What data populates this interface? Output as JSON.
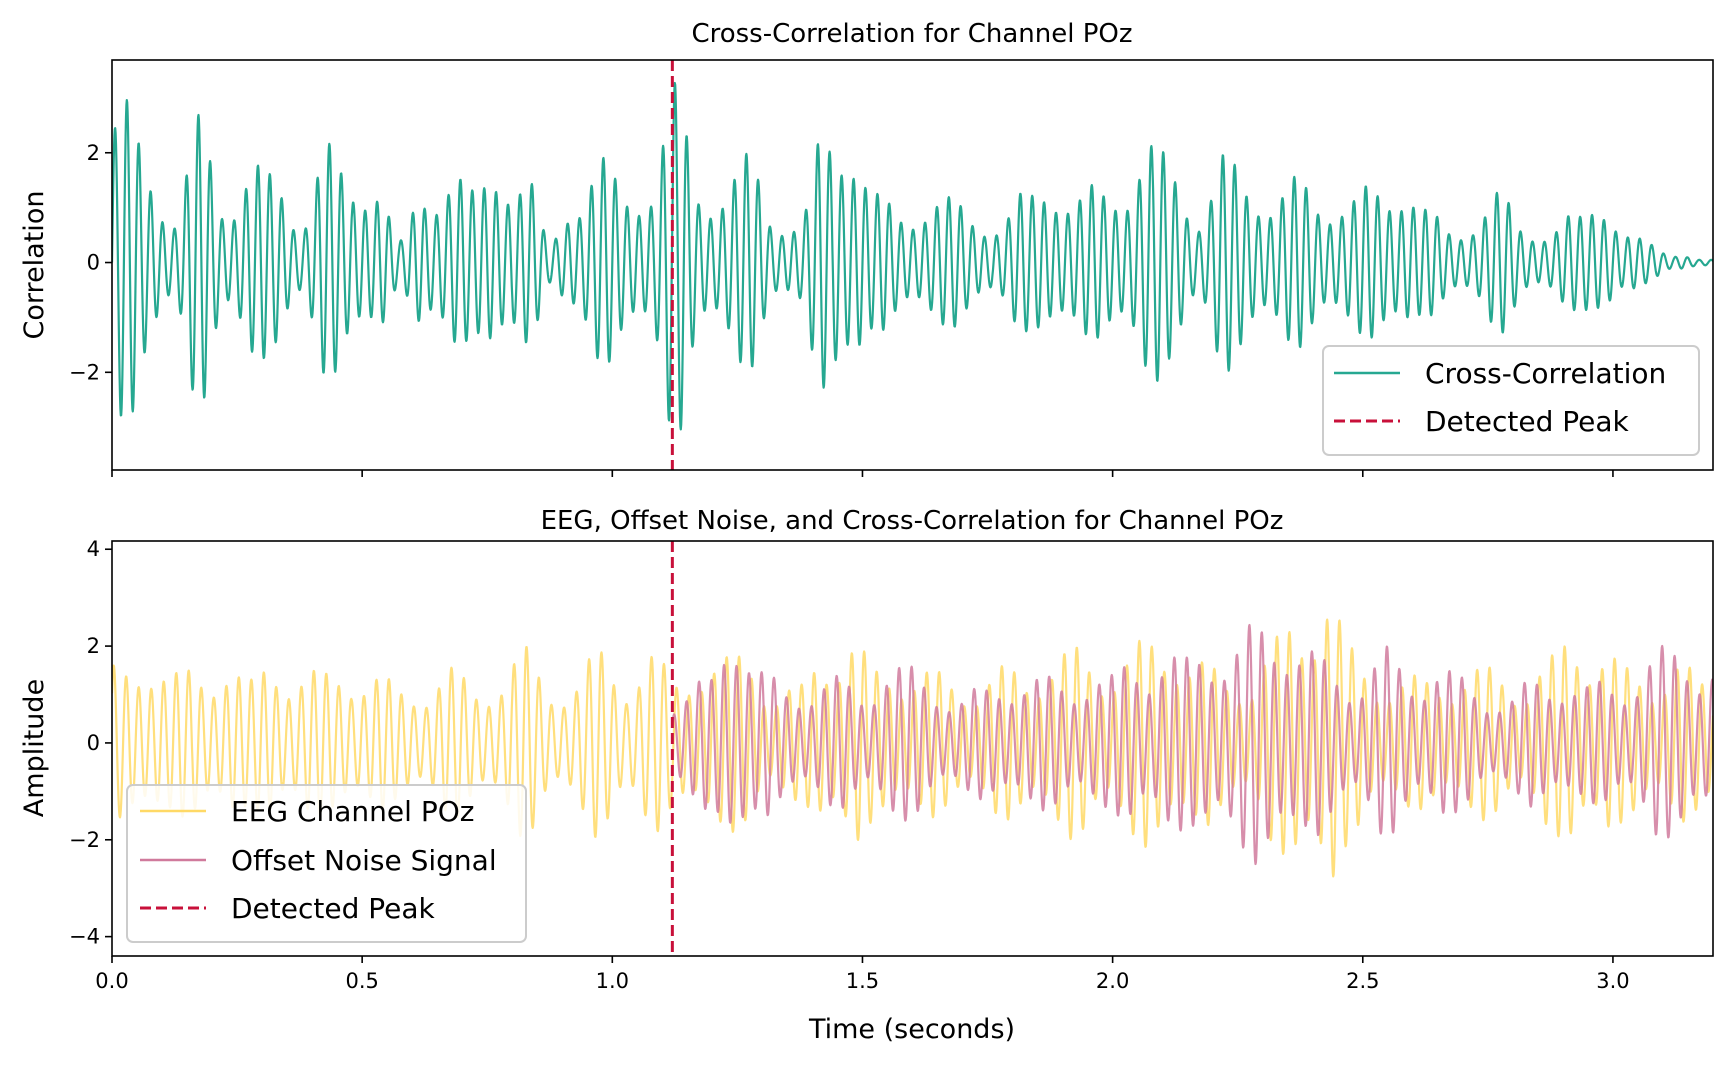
{
  "chart_data": [
    {
      "type": "line",
      "title": "Cross-Correlation for Channel POz",
      "xlabel": "",
      "ylabel": "Correlation",
      "xlim": [
        0,
        3.2
      ],
      "ylim": [
        -3.78,
        3.69
      ],
      "xticks": [
        0.0,
        0.5,
        1.0,
        1.5,
        2.0,
        2.5,
        3.0
      ],
      "xtick_labels_shown": false,
      "yticks": [
        -2,
        0,
        2
      ],
      "ytick_labels": [
        "−2",
        "0",
        "2"
      ],
      "grid": false,
      "legend": "bottom-right",
      "oscillation_hz": 42,
      "envelope_bin_seconds": 0.05,
      "series": [
        {
          "name": "Cross-Correlation",
          "color": "#26a891",
          "style": "solid",
          "x_start": 0.0,
          "peak_amplitude": [
            3.0,
            2.0,
            1.0,
            2.7,
            1.3,
            2.0,
            1.6,
            1.0,
            2.3,
            1.5,
            2.0,
            0.4,
            1.5,
            2.0,
            1.3,
            2.2,
            1.8,
            0.4,
            1.5,
            2.0,
            1.4,
            1.8,
            3.3,
            1.6,
            1.6,
            2.0,
            1.0,
            0.8,
            2.5,
            3.0,
            1.3,
            1.0,
            1.3,
            1.2,
            1.0,
            0.8,
            1.3,
            1.9,
            1.2,
            1.5,
            1.8,
            2.2,
            2.0,
            1.0,
            2.0,
            1.8,
            1.3,
            1.6,
            1.4,
            1.2,
            1.5,
            1.8,
            1.0,
            0.7,
            0.9,
            1.3,
            0.8,
            0.6,
            0.9,
            1.6,
            0.5,
            0.4,
            0.2,
            0.05
          ]
        },
        {
          "name": "Detected Peak",
          "color": "#c8103a",
          "style": "dashed",
          "x": 1.12
        }
      ]
    },
    {
      "type": "line",
      "title": "EEG, Offset Noise, and Cross-Correlation for Channel POz",
      "xlabel": "Time (seconds)",
      "ylabel": "Amplitude",
      "xlim": [
        0,
        3.2
      ],
      "ylim": [
        -4.4,
        4.17
      ],
      "xticks": [
        0.0,
        0.5,
        1.0,
        1.5,
        2.0,
        2.5,
        3.0
      ],
      "xtick_labels": [
        "0.0",
        "0.5",
        "1.0",
        "1.5",
        "2.0",
        "2.5",
        "3.0"
      ],
      "yticks": [
        -4,
        -2,
        0,
        2,
        4
      ],
      "ytick_labels": [
        "−4",
        "−2",
        "0",
        "2",
        "4"
      ],
      "grid": false,
      "legend": "bottom-left",
      "oscillation_hz": 40,
      "envelope_bin_seconds": 0.05,
      "series": [
        {
          "name": "EEG Channel POz",
          "color": "#ffd966",
          "style": "solid",
          "x_start": 0.0,
          "peak_amplitude": [
            1.6,
            2.2,
            1.5,
            1.6,
            2.0,
            1.3,
            2.0,
            1.6,
            1.5,
            1.8,
            1.5,
            1.2,
            1.4,
            1.6,
            1.3,
            1.6,
            2.0,
            1.4,
            1.4,
            2.0,
            1.6,
            2.0,
            1.4,
            2.0,
            1.8,
            2.0,
            1.2,
            1.2,
            2.2,
            2.4,
            1.6,
            1.8,
            1.6,
            1.4,
            1.4,
            1.6,
            1.6,
            2.0,
            2.0,
            1.8,
            2.0,
            2.2,
            2.4,
            1.8,
            1.4,
            1.6,
            2.2,
            2.8,
            3.8,
            2.0,
            1.6,
            1.4,
            1.4,
            1.6,
            1.6,
            1.6,
            1.4,
            1.8,
            2.6,
            2.2,
            1.6,
            1.6,
            1.8,
            1.4
          ]
        },
        {
          "name": "Offset Noise Signal",
          "color": "#d07a9c",
          "style": "solid",
          "x_start": 1.12,
          "peak_amplitude": [
            1.1,
            1.4,
            3.2,
            1.6,
            1.2,
            1.4,
            1.4,
            1.2,
            1.8,
            1.6,
            1.4,
            1.0,
            1.2,
            1.6,
            1.4,
            1.4,
            1.6,
            1.4,
            2.0,
            2.0,
            1.8,
            2.4,
            2.2,
            2.6,
            2.8,
            2.0,
            1.6,
            1.6,
            2.0,
            1.6,
            1.8,
            1.4,
            1.2,
            1.0,
            1.4,
            1.6,
            1.2,
            1.4,
            1.6,
            2.0,
            2.2,
            1.8
          ]
        },
        {
          "name": "Detected Peak",
          "color": "#c8103a",
          "style": "dashed",
          "x": 1.12
        }
      ]
    }
  ]
}
